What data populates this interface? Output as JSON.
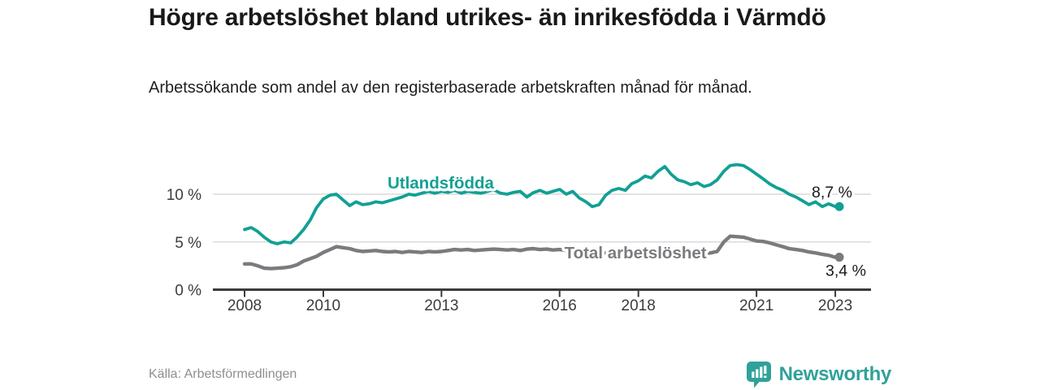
{
  "header": {
    "title": "Högre arbetslöshet bland utrikes- än inrikesfödda i Värmdö",
    "subtitle": "Arbetssökande som andel av den registerbaserade arbetskraften månad för månad."
  },
  "footer": {
    "source": "Källa: Arbetsförmedlingen",
    "brand": "Newsworthy"
  },
  "colors": {
    "accent": "#12a094",
    "gray_series": "#7a7b7f",
    "grid": "#dadada",
    "axis": "#3b3b3b",
    "tick_text": "#3c3c3c",
    "value_text": "#1a1a1a",
    "brand_teal": "#2fa299"
  },
  "chart_data": {
    "type": "line",
    "title": "Högre arbetslöshet bland utrikes- än inrikesfödda i Värmdö",
    "subtitle": "Arbetssökande som andel av den registerbaserade arbetskraften månad för månad.",
    "unit": "%",
    "grid": "horizontal",
    "legend_position": "inline-labels",
    "xlim": [
      2007.2,
      2023.9
    ],
    "ylim": [
      0,
      14.7
    ],
    "xticks": [
      2008,
      2010,
      2013,
      2016,
      2018,
      2021,
      2023
    ],
    "yticks": [
      0,
      5,
      10
    ],
    "ytick_labels": [
      "0 %",
      "5 %",
      "10 %"
    ],
    "x": [
      2008.0,
      2008.17,
      2008.33,
      2008.5,
      2008.67,
      2008.83,
      2009.0,
      2009.17,
      2009.33,
      2009.5,
      2009.67,
      2009.83,
      2010.0,
      2010.17,
      2010.33,
      2010.5,
      2010.67,
      2010.83,
      2011.0,
      2011.17,
      2011.33,
      2011.5,
      2011.67,
      2011.83,
      2012.0,
      2012.17,
      2012.33,
      2012.5,
      2012.67,
      2012.83,
      2013.0,
      2013.17,
      2013.33,
      2013.5,
      2013.67,
      2013.83,
      2014.0,
      2014.17,
      2014.33,
      2014.5,
      2014.67,
      2014.83,
      2015.0,
      2015.17,
      2015.33,
      2015.5,
      2015.67,
      2015.83,
      2016.0,
      2016.17,
      2016.33,
      2016.5,
      2016.67,
      2016.83,
      2017.0,
      2017.17,
      2017.33,
      2017.5,
      2017.67,
      2017.83,
      2018.0,
      2018.17,
      2018.33,
      2018.5,
      2018.67,
      2018.83,
      2019.0,
      2019.17,
      2019.33,
      2019.5,
      2019.67,
      2019.83,
      2020.0,
      2020.17,
      2020.33,
      2020.5,
      2020.67,
      2020.83,
      2021.0,
      2021.17,
      2021.33,
      2021.5,
      2021.67,
      2021.83,
      2022.0,
      2022.17,
      2022.33,
      2022.5,
      2022.67,
      2022.83,
      2023.0
    ],
    "series": [
      {
        "name": "Utlandsfödda",
        "color_key": "accent",
        "end_label": "8,7 %",
        "end_value": 8.7,
        "label_anchor": {
          "x": 2011.63,
          "y": 10.6
        },
        "values": [
          6.3,
          6.5,
          6.1,
          5.5,
          5.0,
          4.8,
          5.0,
          4.9,
          5.5,
          6.3,
          7.3,
          8.6,
          9.5,
          9.9,
          10.0,
          9.4,
          8.8,
          9.2,
          8.9,
          9.0,
          9.2,
          9.1,
          9.3,
          9.5,
          9.7,
          10.0,
          9.9,
          10.1,
          10.3,
          10.1,
          10.3,
          10.2,
          10.4,
          10.1,
          10.3,
          10.2,
          10.1,
          10.3,
          10.45,
          10.1,
          10.0,
          10.2,
          10.3,
          9.7,
          10.15,
          10.4,
          10.1,
          10.3,
          10.5,
          10.0,
          10.3,
          9.6,
          9.2,
          8.7,
          8.9,
          9.9,
          10.4,
          10.6,
          10.4,
          11.1,
          11.4,
          11.9,
          11.7,
          12.4,
          12.9,
          12.1,
          11.5,
          11.3,
          11.0,
          11.2,
          10.8,
          11.0,
          11.5,
          12.4,
          13.0,
          13.1,
          13.0,
          12.6,
          12.1,
          11.6,
          11.1,
          10.7,
          10.4,
          10.0,
          9.7,
          9.3,
          8.9,
          9.2,
          8.7,
          9.0,
          8.7
        ]
      },
      {
        "name": "Total arbetslöshet",
        "color_key": "gray_series",
        "end_label": "3,4 %",
        "end_value": 3.4,
        "label_anchor": {
          "x": 2016.12,
          "y": 3.28
        },
        "values": [
          2.7,
          2.7,
          2.5,
          2.25,
          2.2,
          2.25,
          2.3,
          2.4,
          2.6,
          3.0,
          3.25,
          3.5,
          3.9,
          4.2,
          4.5,
          4.4,
          4.3,
          4.1,
          4.0,
          4.05,
          4.1,
          4.0,
          3.95,
          4.0,
          3.9,
          4.0,
          3.95,
          3.9,
          4.0,
          3.95,
          4.0,
          4.1,
          4.2,
          4.15,
          4.2,
          4.1,
          4.15,
          4.2,
          4.25,
          4.2,
          4.15,
          4.2,
          4.1,
          4.25,
          4.3,
          4.2,
          4.25,
          4.15,
          4.2,
          4.1,
          4.0,
          3.95,
          3.9,
          3.85,
          3.8,
          3.85,
          3.9,
          3.85,
          3.8,
          3.85,
          3.8,
          3.75,
          3.7,
          3.75,
          3.7,
          3.75,
          3.7,
          3.75,
          3.8,
          3.75,
          3.8,
          3.85,
          4.0,
          5.0,
          5.6,
          5.55,
          5.5,
          5.3,
          5.1,
          5.05,
          4.9,
          4.7,
          4.5,
          4.3,
          4.2,
          4.1,
          3.95,
          3.85,
          3.7,
          3.6,
          3.4
        ]
      }
    ]
  }
}
